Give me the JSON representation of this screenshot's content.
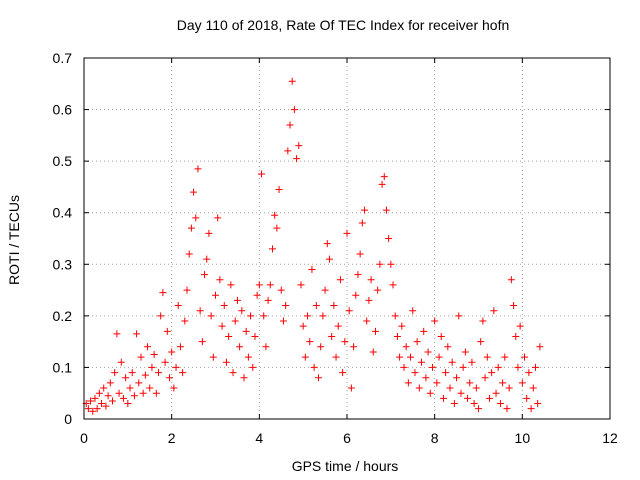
{
  "chart_data": {
    "type": "scatter",
    "title": "Day 110 of 2018, Rate Of TEC Index for receiver hofn",
    "xlabel": "GPS time / hours",
    "ylabel": "ROTI / TECUs",
    "xlim": [
      0,
      12
    ],
    "ylim": [
      0,
      0.7
    ],
    "xticks": [
      "0",
      "2",
      "4",
      "6",
      "8",
      "10",
      "12"
    ],
    "yticks": [
      "0",
      "0.1",
      "0.2",
      "0.3",
      "0.4",
      "0.5",
      "0.6",
      "0.7"
    ],
    "grid": true,
    "marker": "plus",
    "color": "#ff0000",
    "series": [
      {
        "name": "ROTI",
        "points": [
          [
            0.05,
            0.03
          ],
          [
            0.1,
            0.02
          ],
          [
            0.15,
            0.035
          ],
          [
            0.2,
            0.015
          ],
          [
            0.25,
            0.04
          ],
          [
            0.3,
            0.02
          ],
          [
            0.35,
            0.05
          ],
          [
            0.4,
            0.03
          ],
          [
            0.45,
            0.06
          ],
          [
            0.5,
            0.025
          ],
          [
            0.55,
            0.045
          ],
          [
            0.6,
            0.07
          ],
          [
            0.65,
            0.035
          ],
          [
            0.7,
            0.09
          ],
          [
            0.75,
            0.165
          ],
          [
            0.8,
            0.05
          ],
          [
            0.85,
            0.11
          ],
          [
            0.9,
            0.04
          ],
          [
            0.95,
            0.08
          ],
          [
            1.0,
            0.03
          ],
          [
            1.05,
            0.06
          ],
          [
            1.1,
            0.09
          ],
          [
            1.15,
            0.045
          ],
          [
            1.2,
            0.165
          ],
          [
            1.25,
            0.07
          ],
          [
            1.3,
            0.12
          ],
          [
            1.35,
            0.05
          ],
          [
            1.4,
            0.085
          ],
          [
            1.45,
            0.14
          ],
          [
            1.5,
            0.06
          ],
          [
            1.55,
            0.1
          ],
          [
            1.6,
            0.125
          ],
          [
            1.65,
            0.05
          ],
          [
            1.7,
            0.09
          ],
          [
            1.75,
            0.2
          ],
          [
            1.8,
            0.245
          ],
          [
            1.85,
            0.11
          ],
          [
            1.9,
            0.17
          ],
          [
            1.95,
            0.08
          ],
          [
            2.0,
            0.13
          ],
          [
            2.05,
            0.06
          ],
          [
            2.1,
            0.1
          ],
          [
            2.15,
            0.22
          ],
          [
            2.2,
            0.14
          ],
          [
            2.25,
            0.09
          ],
          [
            2.3,
            0.19
          ],
          [
            2.35,
            0.25
          ],
          [
            2.4,
            0.32
          ],
          [
            2.45,
            0.37
          ],
          [
            2.5,
            0.44
          ],
          [
            2.55,
            0.39
          ],
          [
            2.6,
            0.485
          ],
          [
            2.65,
            0.21
          ],
          [
            2.7,
            0.15
          ],
          [
            2.75,
            0.28
          ],
          [
            2.8,
            0.31
          ],
          [
            2.85,
            0.36
          ],
          [
            2.9,
            0.2
          ],
          [
            2.95,
            0.12
          ],
          [
            3.0,
            0.24
          ],
          [
            3.05,
            0.39
          ],
          [
            3.1,
            0.27
          ],
          [
            3.15,
            0.18
          ],
          [
            3.2,
            0.22
          ],
          [
            3.25,
            0.11
          ],
          [
            3.3,
            0.16
          ],
          [
            3.35,
            0.26
          ],
          [
            3.4,
            0.09
          ],
          [
            3.45,
            0.19
          ],
          [
            3.5,
            0.23
          ],
          [
            3.55,
            0.14
          ],
          [
            3.6,
            0.21
          ],
          [
            3.65,
            0.08
          ],
          [
            3.7,
            0.17
          ],
          [
            3.75,
            0.12
          ],
          [
            3.8,
            0.2
          ],
          [
            3.85,
            0.1
          ],
          [
            3.9,
            0.16
          ],
          [
            3.95,
            0.24
          ],
          [
            4.0,
            0.26
          ],
          [
            4.05,
            0.475
          ],
          [
            4.1,
            0.2
          ],
          [
            4.15,
            0.14
          ],
          [
            4.2,
            0.23
          ],
          [
            4.25,
            0.26
          ],
          [
            4.3,
            0.33
          ],
          [
            4.35,
            0.395
          ],
          [
            4.4,
            0.37
          ],
          [
            4.45,
            0.445
          ],
          [
            4.5,
            0.25
          ],
          [
            4.55,
            0.19
          ],
          [
            4.6,
            0.22
          ],
          [
            4.65,
            0.52
          ],
          [
            4.7,
            0.57
          ],
          [
            4.75,
            0.655
          ],
          [
            4.8,
            0.6
          ],
          [
            4.85,
            0.505
          ],
          [
            4.9,
            0.53
          ],
          [
            4.95,
            0.26
          ],
          [
            5.0,
            0.18
          ],
          [
            5.05,
            0.12
          ],
          [
            5.1,
            0.2
          ],
          [
            5.15,
            0.15
          ],
          [
            5.2,
            0.29
          ],
          [
            5.25,
            0.1
          ],
          [
            5.3,
            0.22
          ],
          [
            5.35,
            0.08
          ],
          [
            5.4,
            0.14
          ],
          [
            5.45,
            0.2
          ],
          [
            5.5,
            0.25
          ],
          [
            5.55,
            0.34
          ],
          [
            5.6,
            0.31
          ],
          [
            5.65,
            0.16
          ],
          [
            5.7,
            0.22
          ],
          [
            5.75,
            0.12
          ],
          [
            5.8,
            0.18
          ],
          [
            5.85,
            0.27
          ],
          [
            5.9,
            0.09
          ],
          [
            5.95,
            0.15
          ],
          [
            6.0,
            0.36
          ],
          [
            6.05,
            0.21
          ],
          [
            6.1,
            0.06
          ],
          [
            6.15,
            0.14
          ],
          [
            6.2,
            0.24
          ],
          [
            6.25,
            0.28
          ],
          [
            6.3,
            0.32
          ],
          [
            6.35,
            0.38
          ],
          [
            6.4,
            0.405
          ],
          [
            6.45,
            0.19
          ],
          [
            6.5,
            0.23
          ],
          [
            6.55,
            0.27
          ],
          [
            6.6,
            0.13
          ],
          [
            6.65,
            0.17
          ],
          [
            6.7,
            0.25
          ],
          [
            6.75,
            0.3
          ],
          [
            6.8,
            0.455
          ],
          [
            6.85,
            0.47
          ],
          [
            6.9,
            0.405
          ],
          [
            6.95,
            0.35
          ],
          [
            7.0,
            0.3
          ],
          [
            7.05,
            0.26
          ],
          [
            7.1,
            0.2
          ],
          [
            7.15,
            0.16
          ],
          [
            7.2,
            0.12
          ],
          [
            7.25,
            0.18
          ],
          [
            7.3,
            0.1
          ],
          [
            7.35,
            0.14
          ],
          [
            7.4,
            0.07
          ],
          [
            7.45,
            0.12
          ],
          [
            7.5,
            0.21
          ],
          [
            7.55,
            0.09
          ],
          [
            7.6,
            0.15
          ],
          [
            7.65,
            0.06
          ],
          [
            7.7,
            0.11
          ],
          [
            7.75,
            0.17
          ],
          [
            7.8,
            0.08
          ],
          [
            7.85,
            0.13
          ],
          [
            7.9,
            0.05
          ],
          [
            7.95,
            0.1
          ],
          [
            8.0,
            0.19
          ],
          [
            8.05,
            0.07
          ],
          [
            8.1,
            0.12
          ],
          [
            8.15,
            0.16
          ],
          [
            8.2,
            0.04
          ],
          [
            8.25,
            0.09
          ],
          [
            8.3,
            0.14
          ],
          [
            8.35,
            0.06
          ],
          [
            8.4,
            0.11
          ],
          [
            8.45,
            0.03
          ],
          [
            8.5,
            0.08
          ],
          [
            8.55,
            0.2
          ],
          [
            8.6,
            0.05
          ],
          [
            8.65,
            0.1
          ],
          [
            8.7,
            0.13
          ],
          [
            8.75,
            0.04
          ],
          [
            8.8,
            0.07
          ],
          [
            8.85,
            0.11
          ],
          [
            8.9,
            0.03
          ],
          [
            8.95,
            0.06
          ],
          [
            9.0,
            0.02
          ],
          [
            9.05,
            0.15
          ],
          [
            9.1,
            0.19
          ],
          [
            9.15,
            0.08
          ],
          [
            9.2,
            0.12
          ],
          [
            9.25,
            0.04
          ],
          [
            9.3,
            0.09
          ],
          [
            9.35,
            0.21
          ],
          [
            9.4,
            0.05
          ],
          [
            9.45,
            0.1
          ],
          [
            9.5,
            0.03
          ],
          [
            9.55,
            0.07
          ],
          [
            9.6,
            0.12
          ],
          [
            9.65,
            0.02
          ],
          [
            9.7,
            0.06
          ],
          [
            9.75,
            0.27
          ],
          [
            9.8,
            0.22
          ],
          [
            9.85,
            0.16
          ],
          [
            9.9,
            0.1
          ],
          [
            9.95,
            0.18
          ],
          [
            10.0,
            0.07
          ],
          [
            10.05,
            0.12
          ],
          [
            10.1,
            0.04
          ],
          [
            10.15,
            0.09
          ],
          [
            10.2,
            0.02
          ],
          [
            10.25,
            0.06
          ],
          [
            10.3,
            0.1
          ],
          [
            10.35,
            0.03
          ],
          [
            10.4,
            0.14
          ]
        ]
      }
    ]
  }
}
